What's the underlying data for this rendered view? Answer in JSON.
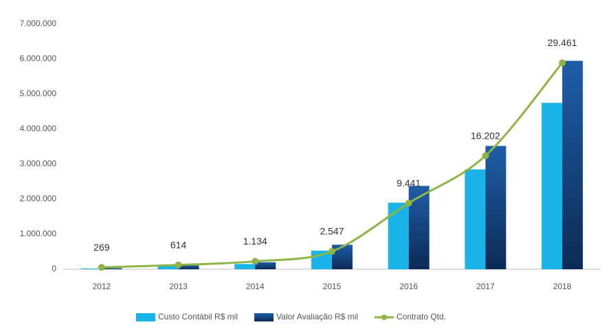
{
  "chart_data": {
    "type": "bar_line",
    "categories": [
      "2012",
      "2013",
      "2014",
      "2015",
      "2016",
      "2017",
      "2018"
    ],
    "series": [
      {
        "name": "Custo Contábil R$ mil",
        "type": "bar",
        "color": "#1ab4e8",
        "values": [
          20000,
          90000,
          150000,
          530000,
          1900000,
          2850000,
          4750000
        ]
      },
      {
        "name": "Valor Avaliação R$  mil",
        "type": "bar",
        "color": "#1c4f91",
        "values": [
          30000,
          110000,
          200000,
          700000,
          2380000,
          3520000,
          5950000
        ]
      },
      {
        "name": "Contrato Qtd.",
        "type": "line",
        "axis": "y2",
        "color": "#8cb543",
        "values": [
          269,
          614,
          1134,
          2547,
          9441,
          16202,
          29461
        ],
        "value_labels": [
          "269",
          "614",
          "1.134",
          "2.547",
          "9.441",
          "16.202",
          "29.461"
        ]
      }
    ],
    "ylim": [
      0,
      7000000
    ],
    "yticks": [
      0,
      {
        "value": 1000000,
        "label": "1.000.000"
      },
      {
        "value": 2000000,
        "label": "2.000.000"
      },
      {
        "value": 3000000,
        "label": "3.000.000"
      },
      {
        "value": 4000000,
        "label": "4.000.000"
      },
      {
        "value": 5000000,
        "label": "5.000.000"
      },
      {
        "value": 6000000,
        "label": "6.000.000"
      },
      {
        "value": 7000000,
        "label": "7.000.000"
      }
    ],
    "y2lim": [
      0,
      35000
    ],
    "legend": "bottom"
  }
}
